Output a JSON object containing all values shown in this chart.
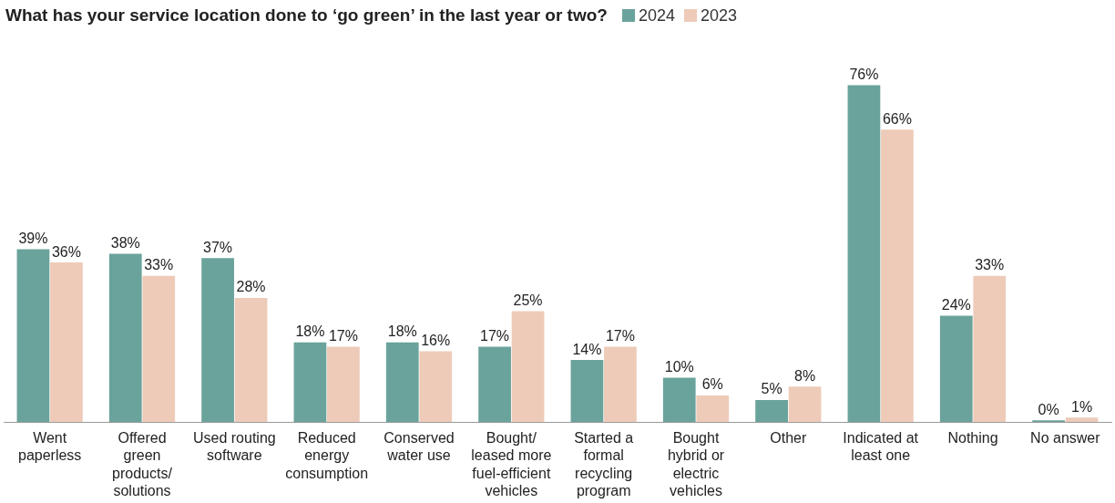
{
  "chart_data": {
    "type": "bar",
    "title": "What has your service location done to ‘go green’ in the last year or two?",
    "categories": [
      "Went paperless",
      "Offered green products/ solutions",
      "Used routing software",
      "Reduced energy consumption",
      "Conserved water use",
      "Bought/ leased more fuel-efficient vehicles",
      "Started a formal recycling program",
      "Bought hybrid or electric vehicles",
      "Other",
      "Indicated at least one",
      "Nothing",
      "No answer"
    ],
    "series": [
      {
        "name": "2024",
        "color": "#6aa39b",
        "values": [
          39,
          38,
          37,
          18,
          18,
          17,
          14,
          10,
          5,
          76,
          24,
          0
        ],
        "value_labels": [
          "39%",
          "38%",
          "37%",
          "18%",
          "18%",
          "17%",
          "14%",
          "10%",
          "5%",
          "76%",
          "24%",
          "0%"
        ]
      },
      {
        "name": "2023",
        "color": "#eecbb9",
        "values": [
          36,
          33,
          28,
          17,
          16,
          25,
          17,
          6,
          8,
          66,
          33,
          1
        ],
        "value_labels": [
          "36%",
          "33%",
          "28%",
          "17%",
          "16%",
          "25%",
          "17%",
          "6%",
          "8%",
          "66%",
          "33%",
          "1%"
        ]
      }
    ],
    "legend": "top right",
    "grid": false
  }
}
